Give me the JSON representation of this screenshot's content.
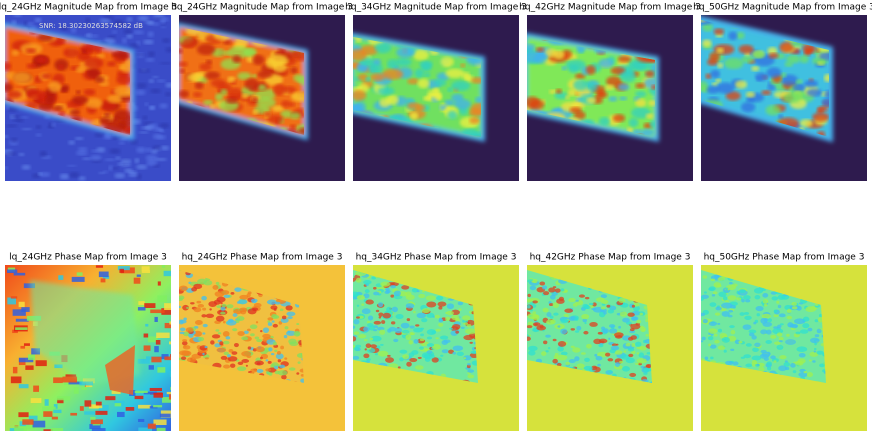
{
  "panels": [
    {
      "title": "lq_24GHz Magnitude Map from Image 3",
      "annotation": "SNR: 18.30230263574582 dB"
    },
    {
      "title": "hq_24GHz Magnitude Map from Image 3"
    },
    {
      "title": "hq_34GHz Magnitude Map from Image 3"
    },
    {
      "title": "hq_42GHz Magnitude Map from Image 3"
    },
    {
      "title": "hq_50GHz Magnitude Map from Image 3"
    },
    {
      "title": "lq_24GHz Phase Map from Image 3"
    },
    {
      "title": "hq_24GHz Phase Map from Image 3"
    },
    {
      "title": "hq_34GHz Phase Map from Image 3"
    },
    {
      "title": "hq_42GHz Phase Map from Image 3"
    },
    {
      "title": "hq_50GHz Phase Map from Image 3"
    }
  ]
}
